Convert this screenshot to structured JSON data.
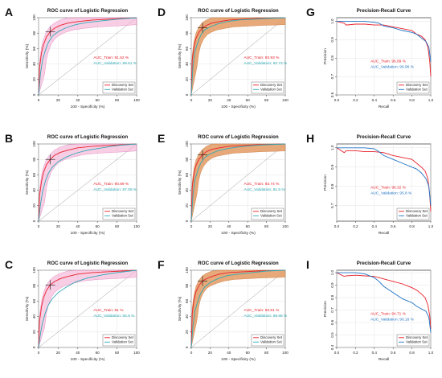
{
  "chart_data": [
    {
      "letter": "A",
      "type": "line",
      "kind": "roc",
      "title": "ROC curve of Logistic Regression",
      "xlabel": "100 - Specificity (%)",
      "ylabel": "Sensitivity (%)",
      "xticks": [
        "0",
        "20",
        "40",
        "60",
        "80",
        "100"
      ],
      "yticks": [
        "0",
        "20",
        "40",
        "60",
        "80",
        "100"
      ],
      "xlim": [
        0,
        100
      ],
      "ylim": [
        0,
        100
      ],
      "band": "pink",
      "annotations": [
        "AUC_Train: 91.52 %",
        "AUC_Validation: 89.61 %"
      ],
      "legend": [
        "Discovery Set",
        "Validation Set"
      ],
      "legend_position": "bottom-right",
      "series": [
        {
          "name": "Discovery Set",
          "color": "#e8202a",
          "x": [
            0,
            1,
            3,
            5,
            8,
            12,
            16,
            22,
            30,
            40,
            55,
            70,
            85,
            100
          ],
          "y": [
            0,
            35,
            55,
            65,
            75,
            82,
            86,
            90,
            93,
            95,
            97,
            98,
            99,
            100
          ]
        },
        {
          "name": "Validation Set",
          "color": "#2fa9b5",
          "x": [
            0,
            2,
            4,
            7,
            10,
            14,
            20,
            28,
            38,
            50,
            65,
            80,
            100
          ],
          "y": [
            0,
            28,
            45,
            58,
            68,
            76,
            82,
            87,
            91,
            94,
            96,
            98,
            100
          ]
        }
      ]
    },
    {
      "letter": "B",
      "type": "line",
      "kind": "roc",
      "title": "ROC curve of Logistic Regression",
      "xlabel": "100 - Specificity (%)",
      "ylabel": "Sensitivity (%)",
      "xticks": [
        "0",
        "20",
        "40",
        "60",
        "80",
        "100"
      ],
      "yticks": [
        "0",
        "20",
        "40",
        "60",
        "80",
        "100"
      ],
      "xlim": [
        0,
        100
      ],
      "ylim": [
        0,
        100
      ],
      "band": "pink",
      "annotations": [
        "AUC_Train: 90.89 %",
        "AUC_Validation: 87.09 %"
      ],
      "legend": [
        "Discovery Set",
        "Validation Set"
      ],
      "legend_position": "bottom-right",
      "series": [
        {
          "name": "Discovery Set",
          "color": "#e8202a",
          "x": [
            0,
            1,
            3,
            5,
            8,
            12,
            16,
            22,
            30,
            40,
            55,
            70,
            85,
            100
          ],
          "y": [
            0,
            33,
            52,
            63,
            73,
            80,
            85,
            89,
            92,
            95,
            97,
            98,
            99,
            100
          ]
        },
        {
          "name": "Validation Set",
          "color": "#2fa9b5",
          "x": [
            0,
            2,
            4,
            7,
            10,
            14,
            20,
            28,
            38,
            50,
            65,
            80,
            100
          ],
          "y": [
            0,
            22,
            38,
            52,
            62,
            70,
            77,
            83,
            88,
            92,
            95,
            98,
            100
          ]
        }
      ]
    },
    {
      "letter": "C",
      "type": "line",
      "kind": "roc",
      "title": "ROC curve of Logistic Regression",
      "xlabel": "100 - Specificity (%)",
      "ylabel": "Sensitivity (%)",
      "xticks": [
        "0",
        "20",
        "40",
        "60",
        "80",
        "100"
      ],
      "yticks": [
        "0",
        "20",
        "40",
        "60",
        "80",
        "100"
      ],
      "xlim": [
        0,
        100
      ],
      "ylim": [
        0,
        100
      ],
      "band": "pink",
      "annotations": [
        "AUC_Train: 91 %",
        "AUC_Validation: 84.9 %"
      ],
      "legend": [
        "Discovery Set",
        "Validation Set"
      ],
      "legend_position": "bottom-right",
      "series": [
        {
          "name": "Discovery Set",
          "color": "#e8202a",
          "x": [
            0,
            1,
            3,
            5,
            8,
            12,
            16,
            22,
            30,
            40,
            55,
            70,
            85,
            100
          ],
          "y": [
            0,
            34,
            53,
            64,
            74,
            81,
            85,
            89,
            92,
            95,
            97,
            98,
            99,
            100
          ]
        },
        {
          "name": "Validation Set",
          "color": "#2fa9b5",
          "x": [
            0,
            2,
            4,
            7,
            10,
            14,
            20,
            28,
            38,
            50,
            65,
            80,
            100
          ],
          "y": [
            0,
            18,
            32,
            45,
            55,
            63,
            71,
            78,
            85,
            90,
            94,
            97,
            100
          ]
        }
      ]
    },
    {
      "letter": "D",
      "type": "line",
      "kind": "roc",
      "title": "ROC curve of Logistic Regression",
      "xlabel": "100 - Specificity (%)",
      "ylabel": "Sensitivity (%)",
      "xticks": [
        "0",
        "20",
        "40",
        "60",
        "80",
        "100"
      ],
      "yticks": [
        "0",
        "20",
        "40",
        "60",
        "80",
        "100"
      ],
      "xlim": [
        0,
        100
      ],
      "ylim": [
        0,
        100
      ],
      "band": "orange",
      "annotations": [
        "AUC_Train: 93.93 %",
        "AUC_Validation: 92.73 %"
      ],
      "legend": [
        "Discovery Set",
        "Validation Set"
      ],
      "legend_position": "bottom-right",
      "series": [
        {
          "name": "Discovery Set",
          "color": "#e8202a",
          "x": [
            0,
            1,
            3,
            5,
            8,
            12,
            16,
            22,
            30,
            40,
            55,
            70,
            85,
            100
          ],
          "y": [
            0,
            45,
            63,
            73,
            81,
            87,
            90,
            93,
            95,
            97,
            98,
            99,
            99.5,
            100
          ]
        },
        {
          "name": "Validation Set",
          "color": "#2fa9b5",
          "x": [
            0,
            2,
            4,
            7,
            10,
            14,
            20,
            28,
            38,
            50,
            65,
            80,
            100
          ],
          "y": [
            0,
            40,
            57,
            68,
            77,
            84,
            88,
            92,
            95,
            97,
            98,
            99,
            100
          ]
        }
      ]
    },
    {
      "letter": "E",
      "type": "line",
      "kind": "roc",
      "title": "ROC curve of Logistic Regression",
      "xlabel": "100 - Specificity (%)",
      "ylabel": "Sensitivity (%)",
      "xticks": [
        "0",
        "20",
        "40",
        "60",
        "80",
        "100"
      ],
      "yticks": [
        "0",
        "20",
        "40",
        "60",
        "80",
        "100"
      ],
      "xlim": [
        0,
        100
      ],
      "ylim": [
        0,
        100
      ],
      "band": "orange",
      "annotations": [
        "AUC_Train: 93.74 %",
        "AUC_Validation: 91.5 %"
      ],
      "legend": [
        "Discovery Set",
        "Validation Set"
      ],
      "legend_position": "bottom-right",
      "series": [
        {
          "name": "Discovery Set",
          "color": "#e8202a",
          "x": [
            0,
            1,
            3,
            5,
            8,
            12,
            16,
            22,
            30,
            40,
            55,
            70,
            85,
            100
          ],
          "y": [
            0,
            44,
            62,
            72,
            80,
            86,
            90,
            93,
            95,
            97,
            98,
            99,
            99.5,
            100
          ]
        },
        {
          "name": "Validation Set",
          "color": "#2fa9b5",
          "x": [
            0,
            2,
            4,
            7,
            10,
            14,
            20,
            28,
            38,
            50,
            65,
            80,
            100
          ],
          "y": [
            0,
            36,
            54,
            66,
            75,
            82,
            87,
            91,
            94,
            96,
            98,
            99,
            100
          ]
        }
      ]
    },
    {
      "letter": "F",
      "type": "line",
      "kind": "roc",
      "title": "ROC curve of Logistic Regression",
      "xlabel": "100 - Specificity (%)",
      "ylabel": "Sensitivity (%)",
      "xticks": [
        "0",
        "20",
        "40",
        "60",
        "80",
        "100"
      ],
      "yticks": [
        "0",
        "20",
        "40",
        "60",
        "80",
        "100"
      ],
      "xlim": [
        0,
        100
      ],
      "ylim": [
        0,
        100
      ],
      "band": "orange",
      "annotations": [
        "AUC_Train: 93.61 %",
        "AUC_Validation: 89.66 %"
      ],
      "legend": [
        "Discovery Set",
        "Validation Set"
      ],
      "legend_position": "bottom-right",
      "series": [
        {
          "name": "Discovery Set",
          "color": "#e8202a",
          "x": [
            0,
            1,
            3,
            5,
            8,
            12,
            16,
            22,
            30,
            40,
            55,
            70,
            85,
            100
          ],
          "y": [
            0,
            44,
            62,
            72,
            80,
            86,
            89,
            92,
            95,
            97,
            98,
            99,
            99.5,
            100
          ]
        },
        {
          "name": "Validation Set",
          "color": "#2fa9b5",
          "x": [
            0,
            2,
            4,
            7,
            10,
            14,
            20,
            28,
            38,
            50,
            65,
            80,
            100
          ],
          "y": [
            0,
            30,
            48,
            60,
            70,
            78,
            84,
            89,
            93,
            95,
            97,
            99,
            100
          ]
        }
      ]
    },
    {
      "letter": "G",
      "type": "line",
      "kind": "pr",
      "title": "Precision-Recall Curve",
      "xlabel": "Recall",
      "ylabel": "Precision",
      "xticks": [
        "0.0",
        "0.2",
        "0.4",
        "0.6",
        "0.8",
        "1.0"
      ],
      "yticks": [
        "0.6",
        "0.7",
        "0.8",
        "0.9",
        "1.0"
      ],
      "xlim": [
        0,
        1
      ],
      "ylim": [
        0.6,
        1.02
      ],
      "annotations": [
        "AUC_Train: 96.89 %",
        "AUC_Validation: 96.96 %"
      ],
      "legend": [
        "Discovery Set",
        "Validation Set"
      ],
      "legend_position": "bottom-right",
      "series": [
        {
          "name": "Discovery Set",
          "color": "#e8202a",
          "x": [
            0,
            0.08,
            0.1,
            0.2,
            0.3,
            0.4,
            0.5,
            0.6,
            0.7,
            0.8,
            0.85,
            0.9,
            0.94,
            0.97,
            0.99,
            1.0
          ],
          "y": [
            1.0,
            0.99,
            0.98,
            0.985,
            0.985,
            0.98,
            0.98,
            0.97,
            0.96,
            0.95,
            0.93,
            0.92,
            0.9,
            0.86,
            0.78,
            0.7
          ]
        },
        {
          "name": "Validation Set",
          "color": "#1f72c4",
          "x": [
            0,
            0.2,
            0.3,
            0.4,
            0.45,
            0.5,
            0.6,
            0.7,
            0.8,
            0.85,
            0.9,
            0.95,
            0.98,
            1.0
          ],
          "y": [
            1.0,
            1.0,
            1.0,
            0.995,
            0.99,
            0.975,
            0.965,
            0.95,
            0.94,
            0.93,
            0.91,
            0.89,
            0.86,
            0.78
          ]
        }
      ]
    },
    {
      "letter": "H",
      "type": "line",
      "kind": "pr",
      "title": "Precision-Recall Curve",
      "xlabel": "Recall",
      "ylabel": "Precision",
      "xticks": [
        "0.0",
        "0.2",
        "0.4",
        "0.6",
        "0.8",
        "1.0"
      ],
      "yticks": [
        "0.7",
        "0.8",
        "0.9",
        "1.0"
      ],
      "xlim": [
        0,
        1
      ],
      "ylim": [
        0.62,
        1.02
      ],
      "annotations": [
        "AUC_Train: 96.32 %",
        "AUC_Validation: 95.8 %"
      ],
      "legend": [
        "Discovery Set",
        "Validation Set"
      ],
      "legend_position": "bottom-right",
      "series": [
        {
          "name": "Discovery Set",
          "color": "#e8202a",
          "x": [
            0,
            0.08,
            0.1,
            0.2,
            0.3,
            0.4,
            0.5,
            0.6,
            0.7,
            0.8,
            0.85,
            0.9,
            0.94,
            0.97,
            0.99,
            1.0
          ],
          "y": [
            1.0,
            0.975,
            0.985,
            0.985,
            0.98,
            0.98,
            0.975,
            0.96,
            0.95,
            0.94,
            0.92,
            0.9,
            0.88,
            0.84,
            0.75,
            0.67
          ]
        },
        {
          "name": "Validation Set",
          "color": "#1f72c4",
          "x": [
            0,
            0.2,
            0.3,
            0.4,
            0.45,
            0.5,
            0.6,
            0.7,
            0.8,
            0.85,
            0.9,
            0.95,
            0.98,
            1.0
          ],
          "y": [
            1.0,
            1.0,
            1.0,
            0.995,
            0.98,
            0.96,
            0.94,
            0.92,
            0.9,
            0.89,
            0.87,
            0.84,
            0.8,
            0.7
          ]
        }
      ]
    },
    {
      "letter": "I",
      "type": "line",
      "kind": "pr",
      "title": "Precision-Recall Curve",
      "xlabel": "Recall",
      "ylabel": "Precision",
      "xticks": [
        "0.0",
        "0.2",
        "0.4",
        "0.6",
        "0.8",
        "1.0"
      ],
      "yticks": [
        "0.4",
        "0.5",
        "0.6",
        "0.7",
        "0.8",
        "0.9",
        "1.0"
      ],
      "xlim": [
        0,
        1
      ],
      "ylim": [
        0.4,
        1.02
      ],
      "annotations": [
        "AUC_Train: 94.71 %",
        "AUC_Validation: 90.16 %"
      ],
      "legend": [
        "Discovery Set",
        "Validation Set"
      ],
      "legend_position": "bottom-right",
      "series": [
        {
          "name": "Discovery Set",
          "color": "#e8202a",
          "x": [
            0,
            0.08,
            0.1,
            0.2,
            0.3,
            0.4,
            0.5,
            0.6,
            0.7,
            0.8,
            0.85,
            0.9,
            0.94,
            0.97,
            0.99,
            1.0
          ],
          "y": [
            1.0,
            0.97,
            0.975,
            0.98,
            0.975,
            0.97,
            0.95,
            0.93,
            0.91,
            0.88,
            0.86,
            0.83,
            0.8,
            0.74,
            0.65,
            0.55
          ]
        },
        {
          "name": "Validation Set",
          "color": "#1f72c4",
          "x": [
            0,
            0.2,
            0.3,
            0.4,
            0.45,
            0.5,
            0.6,
            0.7,
            0.8,
            0.85,
            0.9,
            0.95,
            0.98,
            1.0
          ],
          "y": [
            1.0,
            1.0,
            0.99,
            0.96,
            0.93,
            0.89,
            0.84,
            0.79,
            0.76,
            0.73,
            0.71,
            0.69,
            0.64,
            0.52
          ]
        }
      ]
    }
  ]
}
